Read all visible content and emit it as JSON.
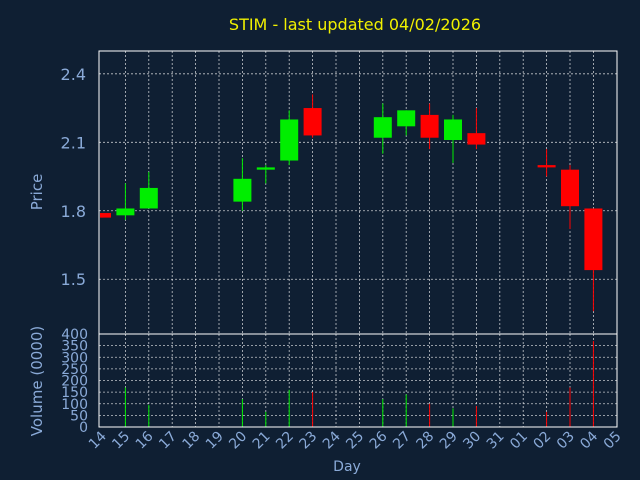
{
  "colors": {
    "background": "#0f1f33",
    "title": "#f0f000",
    "axis_text": "#8aaad8",
    "grid": "#ffffff",
    "up": "#00ee00",
    "down": "#ff0000",
    "frame": "#ffffff"
  },
  "chart_data": {
    "type": "candlestick",
    "title": "STIM - last updated 04/02/2026",
    "xlabel": "Day",
    "price_panel": {
      "ylabel": "Price",
      "ylim": [
        1.26,
        2.5
      ],
      "yticks": [
        "1.5",
        "1.8",
        "2.1",
        "2.4"
      ],
      "grid": true
    },
    "volume_panel": {
      "ylabel": "Volume (0000)",
      "ylim": [
        0,
        400
      ],
      "yticks": [
        "0",
        "50",
        "100",
        "150",
        "200",
        "250",
        "300",
        "350",
        "400"
      ],
      "grid": true
    },
    "x_tick_labels": [
      "14",
      "15",
      "16",
      "17",
      "18",
      "19",
      "20",
      "21",
      "22",
      "23",
      "24",
      "25",
      "26",
      "27",
      "28",
      "29",
      "30",
      "31",
      "01",
      "02",
      "03",
      "04",
      "05"
    ],
    "candles": [
      {
        "day": "14",
        "open": 1.79,
        "high": 1.79,
        "low": 1.77,
        "close": 1.77,
        "volume": 0
      },
      {
        "day": "15",
        "open": 1.78,
        "high": 1.92,
        "low": 1.76,
        "close": 1.81,
        "volume": 170
      },
      {
        "day": "16",
        "open": 1.81,
        "high": 1.97,
        "low": 1.81,
        "close": 1.9,
        "volume": 95
      },
      {
        "day": "20",
        "open": 1.84,
        "high": 2.03,
        "low": 1.8,
        "close": 1.94,
        "volume": 120
      },
      {
        "day": "21",
        "open": 1.98,
        "high": 2.0,
        "low": 1.92,
        "close": 1.99,
        "volume": 65
      },
      {
        "day": "22",
        "open": 2.02,
        "high": 2.24,
        "low": 2.0,
        "close": 2.2,
        "volume": 160
      },
      {
        "day": "23",
        "open": 2.25,
        "high": 2.31,
        "low": 2.12,
        "close": 2.13,
        "volume": 150
      },
      {
        "day": "26",
        "open": 2.12,
        "high": 2.27,
        "low": 2.05,
        "close": 2.21,
        "volume": 120
      },
      {
        "day": "27",
        "open": 2.17,
        "high": 2.24,
        "low": 2.13,
        "close": 2.24,
        "volume": 140
      },
      {
        "day": "28",
        "open": 2.22,
        "high": 2.27,
        "low": 2.07,
        "close": 2.12,
        "volume": 100
      },
      {
        "day": "29",
        "open": 2.11,
        "high": 2.22,
        "low": 2.01,
        "close": 2.2,
        "volume": 80
      },
      {
        "day": "30",
        "open": 2.14,
        "high": 2.25,
        "low": 2.07,
        "close": 2.09,
        "volume": 90
      },
      {
        "day": "02",
        "open": 2.0,
        "high": 2.07,
        "low": 1.95,
        "close": 1.99,
        "volume": 65
      },
      {
        "day": "03",
        "open": 1.98,
        "high": 2.0,
        "low": 1.72,
        "close": 1.82,
        "volume": 170
      },
      {
        "day": "04",
        "open": 1.81,
        "high": 1.81,
        "low": 1.36,
        "close": 1.54,
        "volume": 370
      }
    ]
  }
}
